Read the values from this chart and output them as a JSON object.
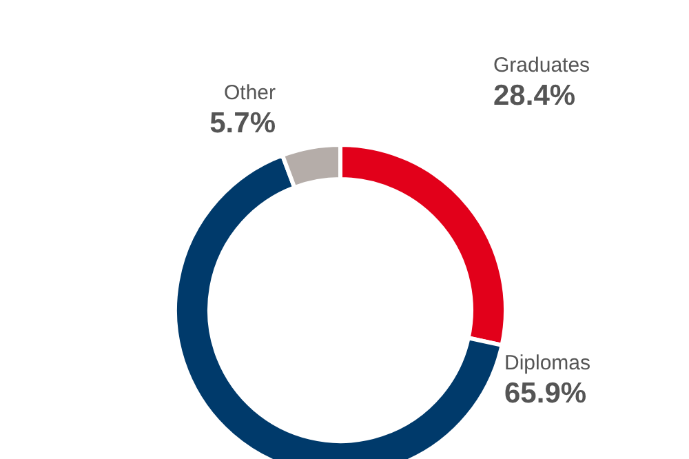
{
  "chart_data": {
    "type": "donut",
    "categories": [
      "Graduates",
      "Diplomas",
      "Other"
    ],
    "values": [
      28.4,
      65.9,
      5.7
    ],
    "colors": [
      "#e2001a",
      "#003a6b",
      "#b5ada9"
    ],
    "value_labels": [
      "28.4%",
      "65.9%",
      "5.7%"
    ]
  }
}
